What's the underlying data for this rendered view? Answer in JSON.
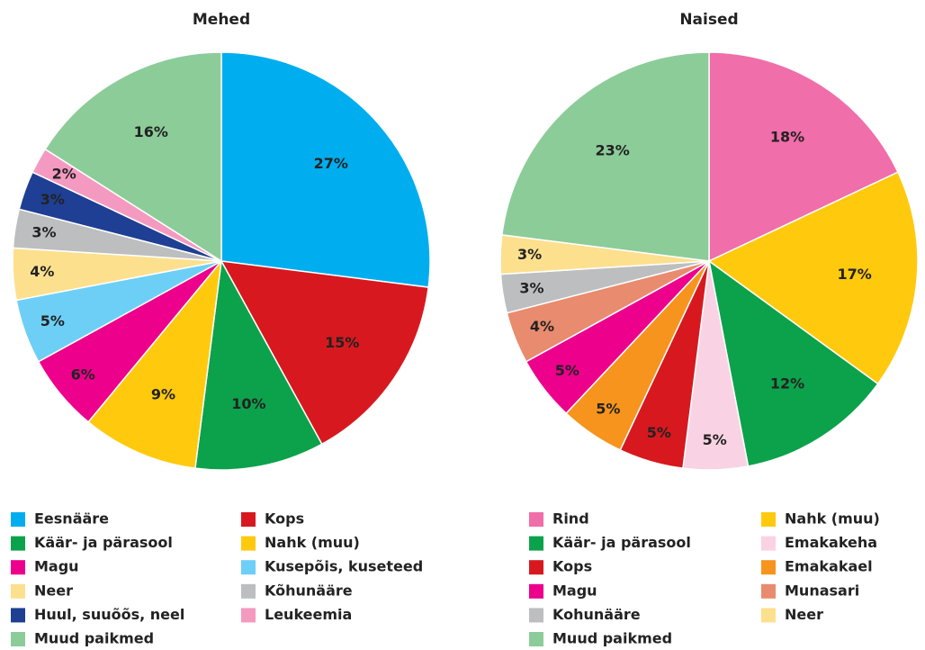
{
  "chart_data": [
    {
      "type": "pie",
      "title": "Mehed",
      "categories": [
        "Eesnääre",
        "Kops",
        "Käär- ja pärasool",
        "Nahk (muu)",
        "Magu",
        "Kusepõis, kuseteed",
        "Neer",
        "Kõhunääre",
        "Huul, suuõõs, neel",
        "Leukeemia",
        "Muud paikmed"
      ],
      "values": [
        27,
        15,
        10,
        9,
        6,
        5,
        4,
        3,
        3,
        2,
        16
      ],
      "value_labels": [
        "27%",
        "15%",
        "10%",
        "9%",
        "6%",
        "5%",
        "4%",
        "3%",
        "3%",
        "2%",
        "16%"
      ],
      "colors": [
        "#00aeef",
        "#d7191f",
        "#0ca24b",
        "#ffc90e",
        "#ec008c",
        "#6dcff6",
        "#fde08e",
        "#bcbec0",
        "#1e3f93",
        "#f49ac1",
        "#8ccc99"
      ]
    },
    {
      "type": "pie",
      "title": "Naised",
      "categories": [
        "Rind",
        "Nahk (muu)",
        "Käär- ja pärasool",
        "Emakakeha",
        "Kops",
        "Emakakael",
        "Magu",
        "Munasari",
        "Kohunääre",
        "Neer",
        "Muud paikmed"
      ],
      "values": [
        18,
        17,
        12,
        5,
        5,
        5,
        5,
        4,
        3,
        3,
        23
      ],
      "value_labels": [
        "18%",
        "17%",
        "12%",
        "5%",
        "5%",
        "5%",
        "5%",
        "4%",
        "3%",
        "3%",
        "23%"
      ],
      "colors": [
        "#f06ea9",
        "#ffc90e",
        "#0ca24b",
        "#f9d3e3",
        "#d7191f",
        "#f7941d",
        "#ec008c",
        "#e98b6e",
        "#bcbec0",
        "#fde08e",
        "#8ccc99"
      ]
    }
  ]
}
